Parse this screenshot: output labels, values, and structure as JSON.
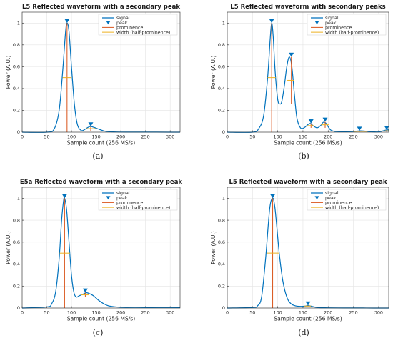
{
  "colors": {
    "signal": "#0072BD",
    "peak": "#0072BD",
    "prominence": "#D95319",
    "width": "#EDB120",
    "grid": "#e4e4e4",
    "axes": "#262626"
  },
  "legend_labels": [
    "signal",
    "peak",
    "prominence",
    "width (half-prominence)"
  ],
  "captions": [
    "(a)",
    "(b)",
    "(c)",
    "(d)"
  ],
  "chart_data": [
    {
      "type": "line",
      "title": "L5 Reflected waveform with a secondary peak",
      "xlabel": "Sample count (256 MS/s)",
      "ylabel": "Power (A.U.)",
      "xlim": [
        0,
        320
      ],
      "ylim": [
        0,
        1.1
      ],
      "xticks": [
        "0",
        "50",
        "100",
        "150",
        "200",
        "250",
        "300"
      ],
      "yticks": [
        "0",
        "0.2",
        "0.4",
        "0.6",
        "0.8",
        "1"
      ],
      "grid": true,
      "legend_position": "top-right",
      "series": [
        {
          "name": "signal",
          "x": [
            0,
            50,
            65,
            75,
            82,
            88,
            91,
            95,
            100,
            106,
            112,
            120,
            127,
            132,
            138,
            145,
            155,
            165,
            175,
            190,
            210,
            250,
            300,
            320
          ],
          "y": [
            0,
            0,
            0.03,
            0.2,
            0.55,
            0.92,
            1.0,
            0.92,
            0.6,
            0.25,
            0.07,
            0.015,
            0.025,
            0.04,
            0.052,
            0.045,
            0.028,
            0.012,
            0.005,
            0.002,
            0.001,
            0.001,
            0,
            0
          ]
        }
      ],
      "peaks": [
        {
          "x": 91,
          "y": 1.0,
          "prominence": 1.0,
          "width": [
            82,
            100
          ]
        },
        {
          "x": 139,
          "y": 0.052,
          "prominence": 0.04,
          "width": [
            129,
            150
          ]
        }
      ]
    },
    {
      "type": "line",
      "title": "L5 Reflected waveform with secondary peaks",
      "xlabel": "Sample count (256 MS/s)",
      "ylabel": "Power (A.U.)",
      "xlim": [
        0,
        320
      ],
      "ylim": [
        0,
        1.1
      ],
      "xticks": [
        "0",
        "50",
        "100",
        "150",
        "200",
        "250",
        "300"
      ],
      "yticks": [
        "0",
        "0.2",
        "0.4",
        "0.6",
        "0.8",
        "1"
      ],
      "grid": true,
      "legend_position": "top-right",
      "series": [
        {
          "name": "signal",
          "x": [
            0,
            50,
            62,
            72,
            80,
            85,
            88,
            91,
            95,
            100,
            104,
            108,
            113,
            118,
            123,
            128,
            133,
            138,
            145,
            152,
            160,
            165,
            170,
            178,
            185,
            190,
            195,
            200,
            205,
            212,
            220,
            235,
            250,
            262,
            272,
            285,
            300,
            315,
            320
          ],
          "y": [
            0,
            0,
            0.03,
            0.15,
            0.5,
            0.85,
            1.0,
            0.88,
            0.55,
            0.3,
            0.26,
            0.28,
            0.42,
            0.6,
            0.69,
            0.6,
            0.35,
            0.13,
            0.04,
            0.04,
            0.07,
            0.08,
            0.06,
            0.04,
            0.06,
            0.09,
            0.085,
            0.05,
            0.02,
            0.008,
            0.005,
            0.004,
            0.006,
            0.012,
            0.01,
            0.004,
            0.003,
            0.02,
            0.02
          ]
        }
      ],
      "peaks": [
        {
          "x": 88,
          "y": 1.0,
          "prominence": 1.0,
          "width": [
            80,
            96
          ]
        },
        {
          "x": 127,
          "y": 0.69,
          "prominence": 0.43,
          "width": [
            119,
            133
          ]
        },
        {
          "x": 166,
          "y": 0.08,
          "prominence": 0.04,
          "width": [
            159,
            172
          ]
        },
        {
          "x": 194,
          "y": 0.095,
          "prominence": 0.055,
          "width": [
            186,
            201
          ]
        },
        {
          "x": 262,
          "y": 0.012,
          "prominence": 0.009,
          "width": [
            250,
            278
          ]
        },
        {
          "x": 316,
          "y": 0.02,
          "prominence": 0.016,
          "width": [
            312,
            320
          ]
        }
      ]
    },
    {
      "type": "line",
      "title": "E5a Reflected waveform with a secondary peak",
      "xlabel": "Sample count (256 MS/s)",
      "ylabel": "Power (A.U.)",
      "xlim": [
        0,
        320
      ],
      "ylim": [
        0,
        1.1
      ],
      "xticks": [
        "0",
        "50",
        "100",
        "150",
        "200",
        "250",
        "300"
      ],
      "yticks": [
        "0",
        "0.2",
        "0.4",
        "0.6",
        "0.8",
        "1"
      ],
      "grid": true,
      "legend_position": "top-right",
      "series": [
        {
          "name": "signal",
          "x": [
            0,
            50,
            60,
            68,
            75,
            80,
            84,
            86,
            90,
            95,
            100,
            105,
            110,
            115,
            120,
            125,
            130,
            137,
            145,
            155,
            165,
            175,
            190,
            210,
            230,
            260,
            290,
            320
          ],
          "y": [
            0,
            0.01,
            0.04,
            0.15,
            0.45,
            0.8,
            0.98,
            1.0,
            0.9,
            0.6,
            0.3,
            0.14,
            0.1,
            0.11,
            0.12,
            0.13,
            0.14,
            0.13,
            0.11,
            0.07,
            0.04,
            0.02,
            0.01,
            0.005,
            0.006,
            0.004,
            0.005,
            0.004
          ]
        }
      ],
      "peaks": [
        {
          "x": 86,
          "y": 1.0,
          "prominence": 1.0,
          "width": [
            76,
            97
          ]
        },
        {
          "x": 128,
          "y": 0.14,
          "prominence": 0.04,
          "width": [
            120,
            136
          ]
        }
      ]
    },
    {
      "type": "line",
      "title": "L5 Reflected waveform with a secondary peak",
      "xlabel": "Sample count (256 MS/s)",
      "ylabel": "Power (A.U.)",
      "xlim": [
        0,
        320
      ],
      "ylim": [
        0,
        1.1
      ],
      "xticks": [
        "0",
        "50",
        "100",
        "150",
        "200",
        "250",
        "300"
      ],
      "yticks": [
        "0",
        "0.2",
        "0.4",
        "0.6",
        "0.8",
        "1"
      ],
      "grid": true,
      "legend_position": "top-right",
      "series": [
        {
          "name": "signal",
          "x": [
            0,
            50,
            60,
            68,
            76,
            84,
            90,
            94,
            98,
            103,
            110,
            118,
            126,
            135,
            145,
            155,
            160,
            168,
            180,
            200,
            230,
            260,
            290,
            320
          ],
          "y": [
            0,
            0.005,
            0.02,
            0.1,
            0.45,
            0.9,
            1.0,
            0.93,
            0.75,
            0.5,
            0.25,
            0.1,
            0.04,
            0.02,
            0.015,
            0.018,
            0.022,
            0.015,
            0.004,
            0.002,
            0.001,
            0.001,
            0,
            0
          ]
        }
      ],
      "peaks": [
        {
          "x": 90,
          "y": 1.0,
          "prominence": 1.0,
          "width": [
            78,
            103
          ]
        },
        {
          "x": 160,
          "y": 0.022,
          "prominence": 0.008,
          "width": [
            152,
            166
          ]
        }
      ]
    }
  ]
}
